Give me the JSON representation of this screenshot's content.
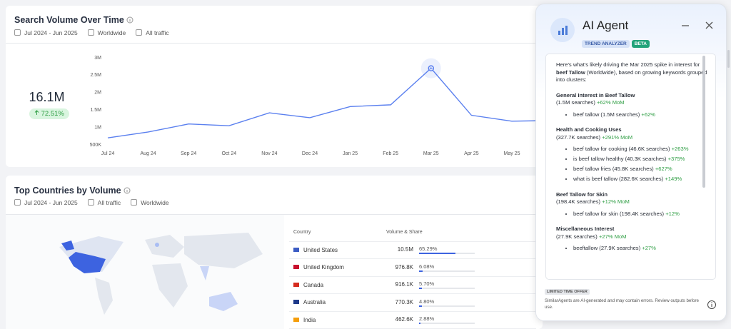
{
  "chart_data": {
    "type": "line",
    "title": "Search Volume Over Time",
    "categories": [
      "Jul 24",
      "Aug 24",
      "Sep 24",
      "Oct 24",
      "Nov 24",
      "Dec 24",
      "Jan 25",
      "Feb 25",
      "Mar 25",
      "Apr 25",
      "May 25",
      null
    ],
    "values": [
      700000,
      870000,
      1100000,
      1050000,
      1420000,
      1280000,
      1600000,
      1650000,
      2700000,
      1350000,
      1180000,
      1200000
    ],
    "color": "#5b80ef",
    "ylim": [
      500000,
      3000000
    ],
    "yticks": [
      {
        "value": 500000,
        "label": "500K"
      },
      {
        "value": 1000000,
        "label": "1M"
      },
      {
        "value": 1500000,
        "label": "1.5M"
      },
      {
        "value": 2000000,
        "label": "2M"
      },
      {
        "value": 2500000,
        "label": "2.5M"
      },
      {
        "value": 3000000,
        "label": "3M"
      }
    ]
  },
  "search_card": {
    "filters": [
      "Jul 2024 - Jun 2025",
      "Worldwide",
      "All traffic"
    ],
    "total": "16.1M",
    "change": "72.51%"
  },
  "countries_card": {
    "title": "Top Countries by Volume",
    "filters": [
      "Jul 2024 - Jun 2025",
      "All traffic",
      "Worldwide"
    ],
    "table": {
      "headers": [
        "Country",
        "Volume & Share"
      ],
      "rows": [
        [
          "United States",
          "10.5M",
          "65.29%"
        ],
        [
          "United Kingdom",
          "976.8K",
          "6.08%"
        ],
        [
          "Canada",
          "916.1K",
          "5.70%"
        ],
        [
          "Australia",
          "770.3K",
          "4.80%"
        ],
        [
          "India",
          "462.6K",
          "2.88%"
        ]
      ]
    }
  },
  "agent": {
    "title": "AI Agent",
    "badges": [
      "TREND ANALYZER",
      "BETA"
    ],
    "intro_before": "Here's what's likely driving the Mar 2025 spike in interest for ",
    "intro_bold": "beef Tallow",
    "intro_after": " (Worldwide), based on growing keywords grouped into clusters:",
    "clusters": [
      {
        "title": "General Interest in Beef Tallow",
        "summary": "(1.5M searches)",
        "change": "+62% MoM",
        "items": [
          {
            "text": "beef tallow (1.5M searches)",
            "change": "+62%"
          }
        ]
      },
      {
        "title": "Health and Cooking Uses",
        "summary": "(327.7K searches)",
        "change": "+291% MoM",
        "items": [
          {
            "text": "beef tallow for cooking (46.6K searches)",
            "change": "+263%"
          },
          {
            "text": "is beef tallow healthy (40.3K searches)",
            "change": "+375%"
          },
          {
            "text": "beef tallow fries (45.8K searches)",
            "change": "+627%"
          },
          {
            "text": "what is beef tallow (282.6K searches)",
            "change": "+149%"
          }
        ]
      },
      {
        "title": "Beef Tallow for Skin",
        "summary": "(198.4K searches)",
        "change": "+12% MoM",
        "items": [
          {
            "text": "beef tallow for skin (198.4K searches)",
            "change": "+12%"
          }
        ]
      },
      {
        "title": "Miscellaneous Interest",
        "summary": "(27.9K searches)",
        "change": "+27% MoM",
        "items": [
          {
            "text": "beeftallow (27.9K searches)",
            "change": "+27%"
          }
        ]
      }
    ],
    "offer": "LIMITED TIME OFFER",
    "disclaimer": "SimilarAgents are AI-generated and may contain errors. Review outputs before use."
  }
}
